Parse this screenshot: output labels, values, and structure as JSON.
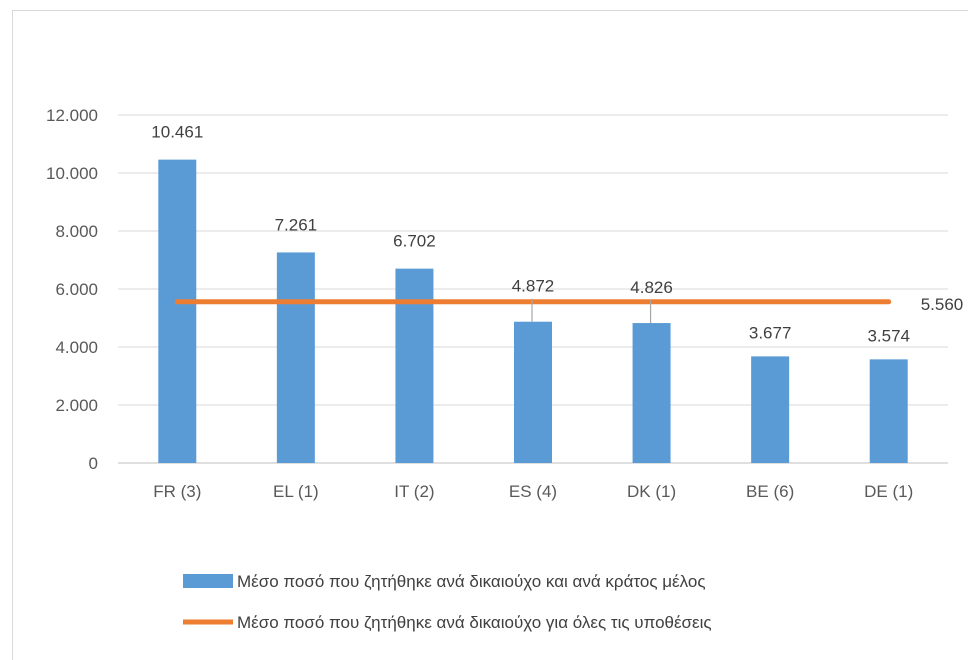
{
  "chart_data": {
    "type": "bar",
    "title": "",
    "xlabel": "",
    "ylabel": "",
    "categories": [
      "FR (3)",
      "EL (1)",
      "IT (2)",
      "ES (4)",
      "DK (1)",
      "BE (6)",
      "DE (1)"
    ],
    "series": [
      {
        "name": "Μέσο ποσό που ζητήθηκε ανά δικαιούχο και ανά κράτος μέλος",
        "type": "bar",
        "color": "#5b9bd5",
        "values": [
          10461,
          7261,
          6702,
          4872,
          4826,
          3677,
          3574
        ],
        "labels": [
          "10.461",
          "7.261",
          "6.702",
          "4.872",
          "4.826",
          "3.677",
          "3.574"
        ]
      },
      {
        "name": "Μέσο ποσό που ζητήθηκε ανά δικαιούχο για όλες τις υποθέσεις",
        "type": "line",
        "color": "#ed7d31",
        "value": 5560,
        "label": "5.560"
      }
    ],
    "ylim": [
      0,
      12000
    ],
    "yticks": [
      0,
      2000,
      4000,
      6000,
      8000,
      10000,
      12000
    ],
    "ytick_labels": [
      "0",
      "2.000",
      "4.000",
      "6.000",
      "8.000",
      "10.000",
      "12.000"
    ],
    "grid": true,
    "legend_position": "bottom"
  }
}
